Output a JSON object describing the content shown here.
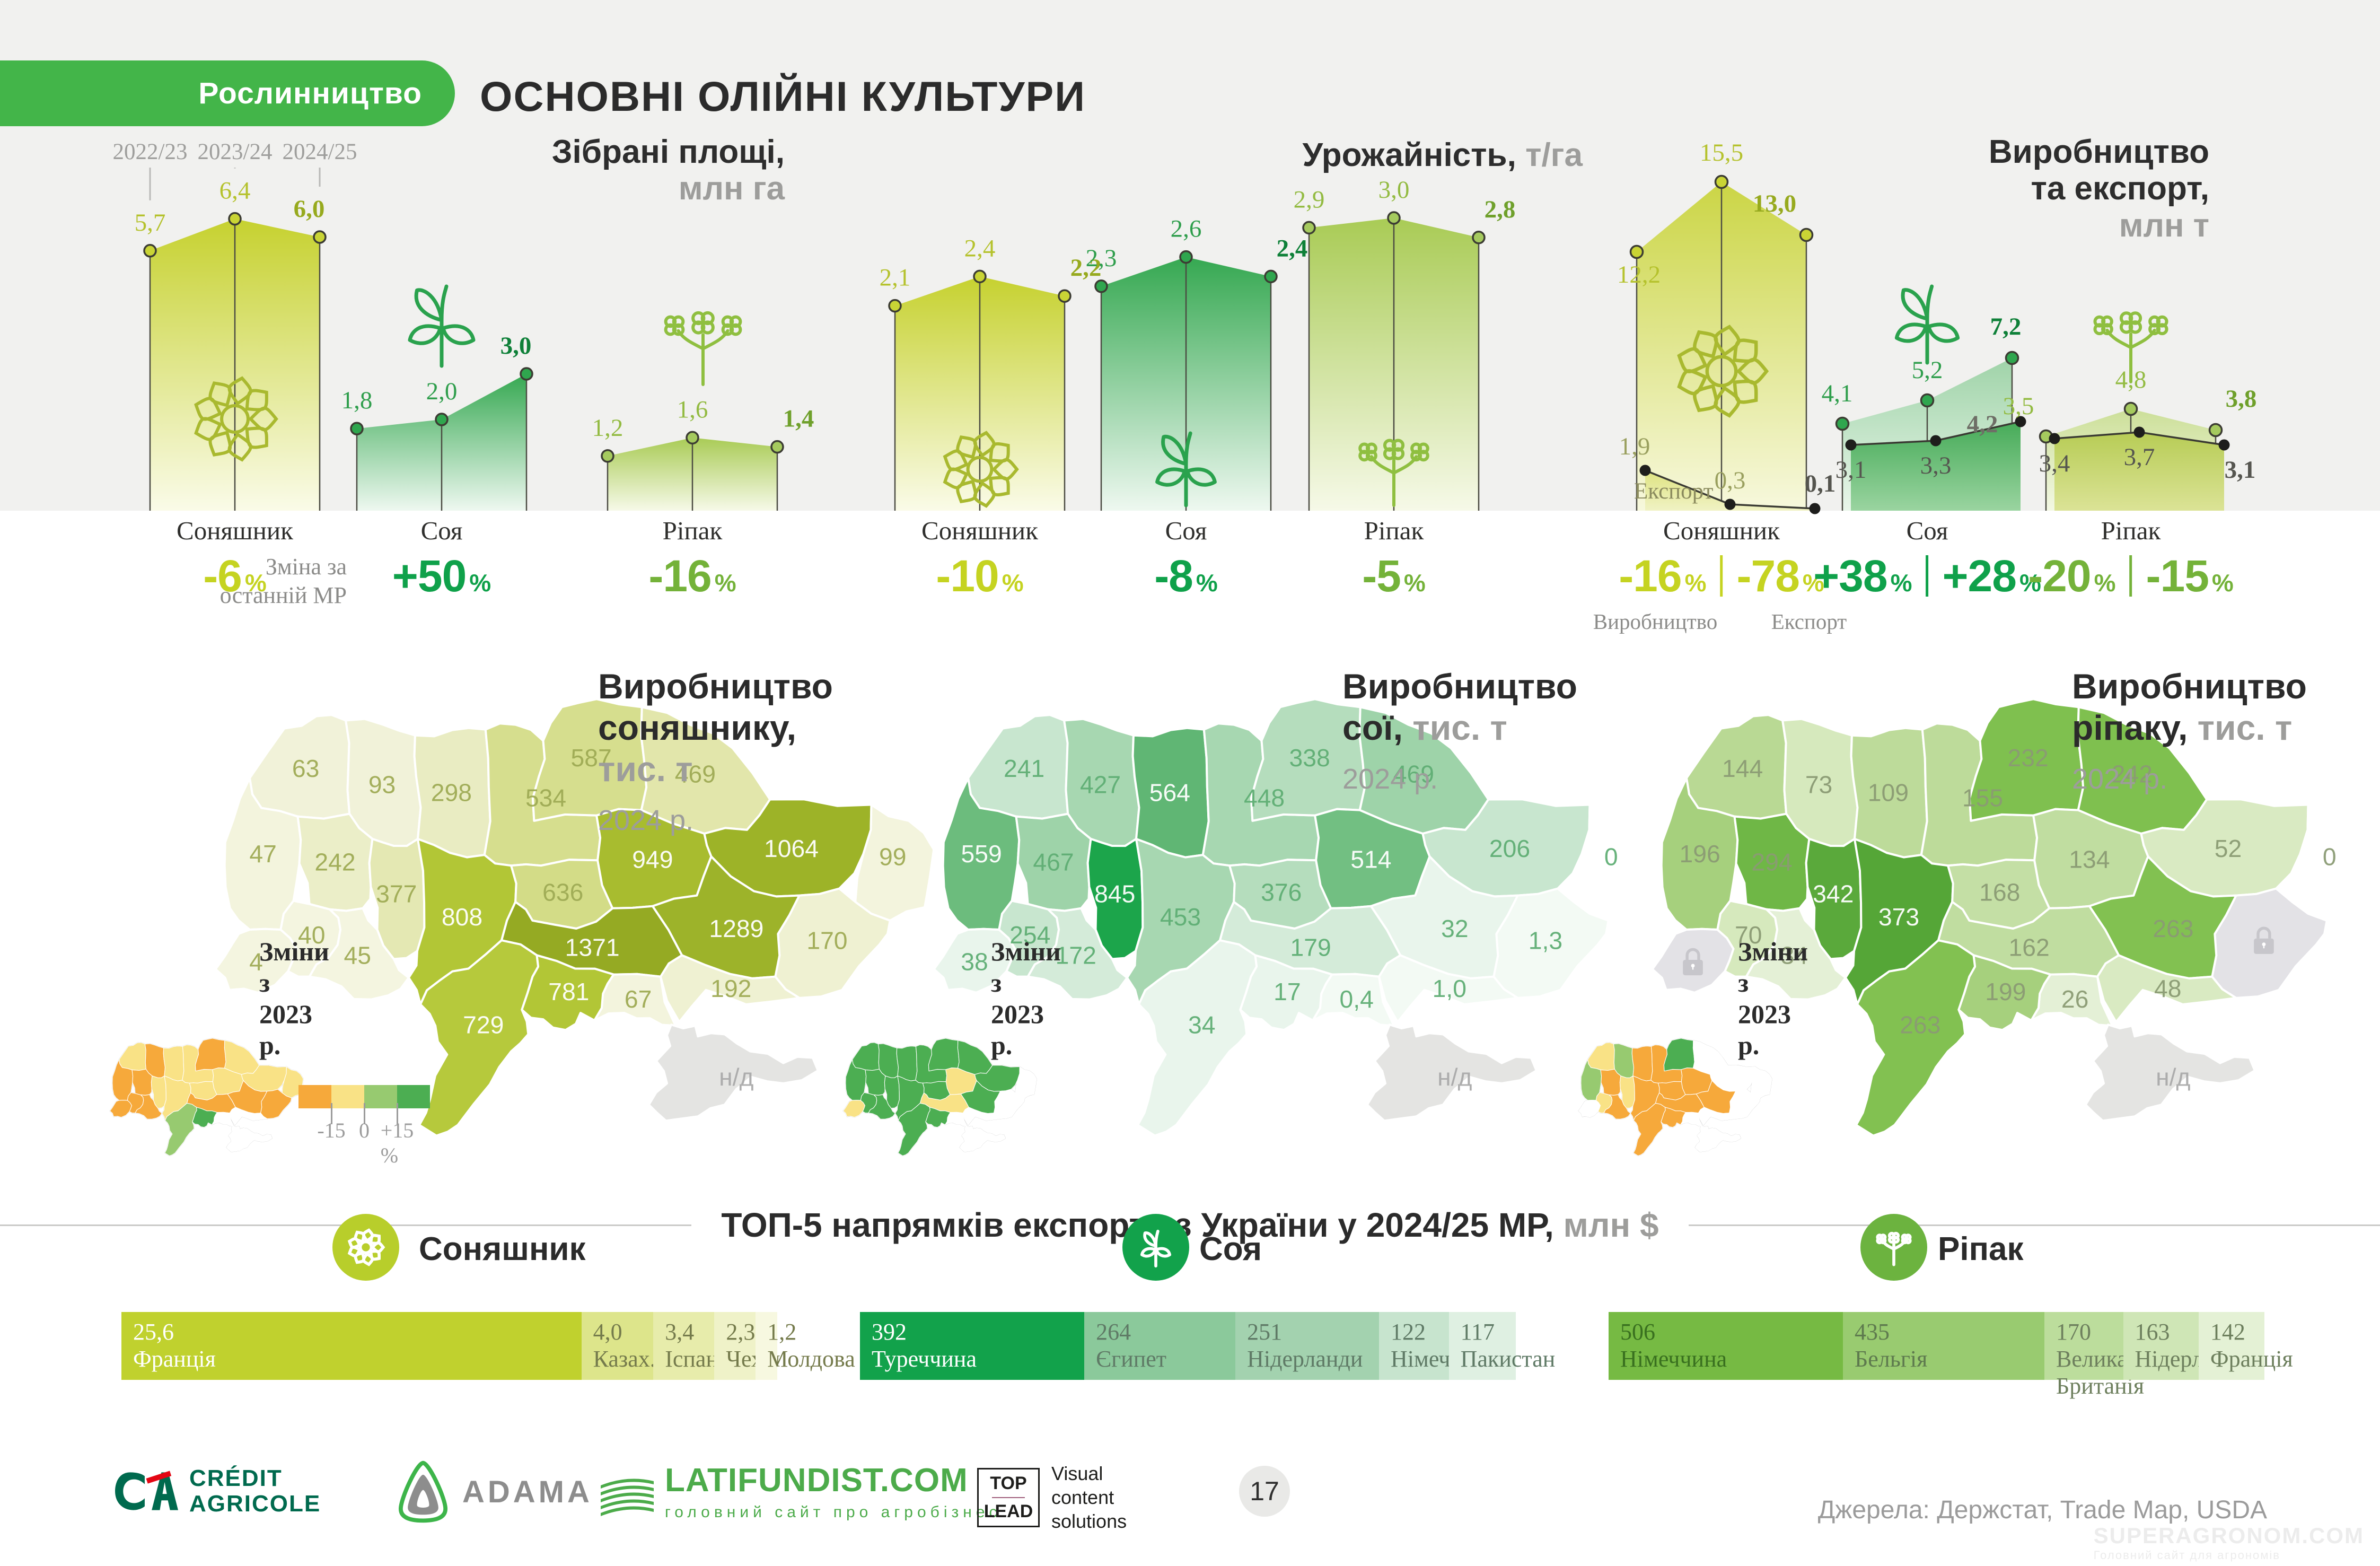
{
  "header": {
    "badge": "Рослинництво",
    "title": "ОСНОВНІ ОЛІЙНІ КУЛЬТУРИ"
  },
  "change_note": [
    "Зміна за",
    "останній МР"
  ],
  "chart_data": [
    {
      "type": "area",
      "title": "Зібрані площі,",
      "unit": "млн га",
      "categories": [
        "2022/23",
        "2023/24",
        "2024/25"
      ],
      "series": [
        {
          "name": "Соняшник",
          "values": [
            5.7,
            6.4,
            6.0
          ],
          "labels": [
            "5,7",
            "6,4",
            "6,0"
          ],
          "change": "-6"
        },
        {
          "name": "Соя",
          "values": [
            1.8,
            2.0,
            3.0
          ],
          "labels": [
            "1,8",
            "2,0",
            "3,0"
          ],
          "change": "+50"
        },
        {
          "name": "Ріпак",
          "values": [
            1.2,
            1.6,
            1.4
          ],
          "labels": [
            "1,2",
            "1,6",
            "1,4"
          ],
          "change": "-16"
        }
      ]
    },
    {
      "type": "area",
      "title": "Урожайність,",
      "unit": "т/га",
      "categories": [
        "2022/23",
        "2023/24",
        "2024/25"
      ],
      "series": [
        {
          "name": "Соняшник",
          "values": [
            2.1,
            2.4,
            2.2
          ],
          "labels": [
            "2,1",
            "2,4",
            "2,2"
          ],
          "change": "-10"
        },
        {
          "name": "Соя",
          "values": [
            2.3,
            2.6,
            2.4
          ],
          "labels": [
            "2,3",
            "2,6",
            "2,4"
          ],
          "change": "-8"
        },
        {
          "name": "Ріпак",
          "values": [
            2.9,
            3.0,
            2.8
          ],
          "labels": [
            "2,9",
            "3,0",
            "2,8"
          ],
          "change": "-5"
        }
      ]
    },
    {
      "type": "area",
      "title": [
        "Виробництво",
        "та експорт,"
      ],
      "unit": "млн т",
      "categories": [
        "2022/23",
        "2023/24",
        "2024/25"
      ],
      "export_label": "Експорт",
      "change_sублabels": [
        "Виробництво",
        "Експорт"
      ],
      "change_sublabels": [
        "Виробництво",
        "Експорт"
      ],
      "series": [
        {
          "name": "Соняшник",
          "production": [
            12.2,
            15.5,
            13.0
          ],
          "production_labels": [
            "12,2",
            "15,5",
            "13,0"
          ],
          "export": [
            1.9,
            0.3,
            0.1
          ],
          "export_labels": [
            "1,9",
            "0,3",
            "0,1"
          ],
          "change_production": "-16",
          "change_export": "-78"
        },
        {
          "name": "Соя",
          "production": [
            4.1,
            5.2,
            7.2
          ],
          "production_labels": [
            "4,1",
            "5,2",
            "7,2"
          ],
          "export": [
            3.1,
            3.3,
            4.2
          ],
          "export_labels": [
            "3,1",
            "3,3",
            "4,2"
          ],
          "change_production": "+38",
          "change_export": "+28"
        },
        {
          "name": "Ріпак",
          "production": [
            3.5,
            4.8,
            3.8
          ],
          "production_labels": [
            "3,5",
            "4,8",
            "3,8"
          ],
          "export": [
            3.4,
            3.7,
            3.1
          ],
          "export_labels": [
            "3,4",
            "3,7",
            "3,1"
          ],
          "change_production": "-20",
          "change_export": "-15"
        }
      ]
    }
  ],
  "maps": [
    {
      "title": [
        "Виробництво",
        "соняшнику, "
      ],
      "title_grey": "тис. т",
      "year": "2024 р.",
      "changes_label": [
        "Зміни",
        "з 2023 р."
      ],
      "regions": {
        "volyn": "63",
        "rivne": "93",
        "zhytomyr": "298",
        "kyiv": "534",
        "chernihiv": "587",
        "sumy": "469",
        "lviv": "47",
        "ternopil": "242",
        "khmelnytskyi": "377",
        "vinnytsia": "808",
        "cherkasy": "636",
        "poltava": "949",
        "kharkiv": "1064",
        "luhansk": "99",
        "donetsk": "170",
        "dnipro": "1289",
        "zaporizhzhia": "192",
        "kirovohrad": "1371",
        "mykolaiv": "781",
        "odesa": "729",
        "kherson": "67",
        "zakarpattia": "4",
        "ivanofrankivsk": "40",
        "chernivtsi": "45",
        "crimea": "н/д"
      },
      "fills": {
        "volyn": "#f1f2d9",
        "rivne": "#f1f2d9",
        "zhytomyr": "#e9ecc2",
        "kyiv": "#d6de8e",
        "chernihiv": "#d6de8e",
        "sumy": "#e2e6ab",
        "lviv": "#f3f4dd",
        "ternopil": "#ebeec8",
        "khmelnytskyi": "#e4e8b3",
        "vinnytsia": "#b2c636",
        "cherkasy": "#d3dc87",
        "poltava": "#a8bc2f",
        "kharkiv": "#9db328",
        "luhansk": "#f3f4dd",
        "donetsk": "#eff1d2",
        "dnipro": "#9db32a",
        "zaporizhzhia": "#eff1d2",
        "kirovohrad": "#95aa23",
        "mykolaiv": "#b2c636",
        "odesa": "#b6c93c",
        "kherson": "#f3f4dd",
        "zakarpattia": "#f4f5e0",
        "ivanofrankivsk": "#f4f5e0",
        "chernivtsi": "#f4f5e0",
        "crimea": "#e4e4e2"
      },
      "label_colors": {
        "default": "#9fab55",
        "white_on": [
          "vinnytsia",
          "kirovohrad",
          "dnipro",
          "poltava",
          "kharkiv",
          "mykolaiv",
          "odesa"
        ],
        "crimea": "#aaaaaa"
      },
      "inset": {
        "volyn": "yellow",
        "rivne": "orange",
        "zhytomyr": "yellow",
        "kyiv": "yellow",
        "chernihiv": "orange",
        "sumy": "yellow",
        "lviv": "orange",
        "ternopil": "orange",
        "khmelnytskyi": "yellow",
        "vinnytsia": "yellow",
        "cherkasy": "yellow",
        "poltava": "yellow",
        "kharkiv": "yellow",
        "luhansk": "yellow",
        "donetsk": "orange",
        "dnipro": "orange",
        "zaporizhzhia": "white",
        "kirovohrad": "orange",
        "mykolaiv": "green",
        "odesa": "lightgreen",
        "kherson": "white",
        "zakarpattia": "orange",
        "ivanofrankivsk": "orange",
        "chernivtsi": "orange",
        "crimea": "white"
      },
      "legend": {
        "labels": [
          "-15",
          "0",
          "+15 %"
        ],
        "colors": [
          "#f6a93b",
          "#f9e286",
          "#97ca70",
          "#4cae52"
        ]
      }
    },
    {
      "title": [
        "Виробництво",
        "сої, "
      ],
      "title_grey": "тис. т",
      "year": "2024 р.",
      "changes_label": [
        "Зміни",
        "з 2023 р."
      ],
      "regions": {
        "volyn": "241",
        "rivne": "427",
        "zhytomyr": "564",
        "kyiv": "448",
        "chernihiv": "338",
        "sumy": "469",
        "lviv": "559",
        "ternopil": "467",
        "khmelnytskyi": "845",
        "vinnytsia": "453",
        "cherkasy": "376",
        "poltava": "514",
        "kharkiv": "206",
        "luhansk": "0",
        "donetsk": "1,3",
        "dnipro": "32",
        "zaporizhzhia": "1,0",
        "kirovohrad": "179",
        "mykolaiv": "17",
        "odesa": "34",
        "kherson": "0,4",
        "zakarpattia": "38",
        "ivanofrankivsk": "254",
        "chernivtsi": "172",
        "crimea": "н/д"
      },
      "fills": {
        "volyn": "#c8e6cf",
        "rivne": "#a7d7b1",
        "zhytomyr": "#60b674",
        "kyiv": "#a7d7b1",
        "chernihiv": "#b5ddbd",
        "sumy": "#9ed3a9",
        "lviv": "#6cbc7d",
        "ternopil": "#9ed3a9",
        "khmelnytskyi": "#1ca54b",
        "vinnytsia": "#a7d7b1",
        "cherkasy": "#b5ddbd",
        "poltava": "#72bf82",
        "kharkiv": "#c8e6cf",
        "luhansk": "#ffffff",
        "donetsk": "#f3faf4",
        "dnipro": "#e9f5ec",
        "zaporizhzhia": "#f3faf4",
        "kirovohrad": "#d4ebd9",
        "mykolaiv": "#e9f5ec",
        "odesa": "#e9f5ec",
        "kherson": "#f3faf4",
        "zakarpattia": "#e9f5ec",
        "ivanofrankivsk": "#c8e6cf",
        "chernivtsi": "#d4ebd9",
        "crimea": "#e4e4e2"
      },
      "label_colors": {
        "default": "#5fae74",
        "white_on": [
          "khmelnytskyi",
          "zhytomyr",
          "lviv",
          "poltava"
        ],
        "crimea": "#aaaaaa"
      },
      "inset": {
        "volyn": "green",
        "rivne": "green",
        "zhytomyr": "green",
        "kyiv": "green",
        "chernihiv": "green",
        "sumy": "green",
        "lviv": "green",
        "ternopil": "green",
        "khmelnytskyi": "green",
        "vinnytsia": "green",
        "cherkasy": "green",
        "poltava": "yellow",
        "kharkiv": "green",
        "luhansk": "white",
        "donetsk": "white",
        "dnipro": "green",
        "zaporizhzhia": "white",
        "kirovohrad": "yellow",
        "mykolaiv": "green",
        "odesa": "green",
        "kherson": "white",
        "zakarpattia": "yellow",
        "ivanofrankivsk": "green",
        "chernivtsi": "green",
        "crimea": "white"
      }
    },
    {
      "title": [
        "Виробництво",
        "ріпаку, "
      ],
      "title_grey": "тис. т",
      "year": "2024 р.",
      "changes_label": [
        "Зміни",
        "з 2023 р."
      ],
      "locked": [
        "zakarpattia",
        "donetsk"
      ],
      "regions": {
        "volyn": "144",
        "rivne": "73",
        "zhytomyr": "109",
        "kyiv": "155",
        "chernihiv": "232",
        "sumy": "242",
        "lviv": "196",
        "ternopil": "294",
        "khmelnytskyi": "342",
        "vinnytsia": "373",
        "cherkasy": "168",
        "poltava": "134",
        "kharkiv": "52",
        "luhansk": "0",
        "donetsk": "",
        "dnipro": "263",
        "zaporizhzhia": "48",
        "kirovohrad": "162",
        "mykolaiv": "199",
        "odesa": "263",
        "kherson": "26",
        "zakarpattia": "",
        "ivanofrankivsk": "70",
        "chernivtsi": "34",
        "crimea": "н/д"
      },
      "fills": {
        "volyn": "#b9d994",
        "rivne": "#d6e9bd",
        "zhytomyr": "#bddb9a",
        "kyiv": "#bddb9a",
        "chernihiv": "#7fc04f",
        "sumy": "#7fc04f",
        "lviv": "#a6d07d",
        "ternopil": "#6fb746",
        "khmelnytskyi": "#5aa93b",
        "vinnytsia": "#55a637",
        "cherkasy": "#c4df a5",
        "poltava": "#c0dda0",
        "kharkiv": "#d9eac2",
        "luhansk": "#ffffff",
        "donetsk": "#e3e2e6",
        "dnipro": "#82c151",
        "zaporizhzhia": "#d9eac2",
        "kirovohrad": "#c0dda0",
        "mykolaiv": "#a6d07d",
        "odesa": "#82c151",
        "kherson": "#e4f0d6",
        "zakarpattia": "#e3e2e6",
        "ivanofrankivsk": "#d6e9bd",
        "chernivtsi": "#e4f0d6",
        "crimea": "#e4e4e2"
      },
      "label_colors": {
        "default": "#8b9b74",
        "white_on": [
          "khmelnytskyi",
          "vinnytsia"
        ],
        "crimea": "#aaaaaa"
      },
      "inset": {
        "volyn": "yellow",
        "rivne": "lightgreen",
        "zhytomyr": "orange",
        "kyiv": "orange",
        "chernihiv": "green",
        "sumy": "white",
        "lviv": "lightgreen",
        "ternopil": "orange",
        "khmelnytskyi": "yellow",
        "vinnytsia": "orange",
        "cherkasy": "orange",
        "poltava": "orange",
        "kharkiv": "white",
        "luhansk": "white",
        "donetsk": "white",
        "dnipro": "orange",
        "zaporizhzhia": "white",
        "kirovohrad": "orange",
        "mykolaiv": "orange",
        "odesa": "orange",
        "kherson": "white",
        "zakarpattia": "white",
        "ivanofrankivsk": "yellow",
        "chernivtsi": "orange",
        "crimea": "white"
      }
    }
  ],
  "top5": {
    "title": "ТОП-5 напрямків експорту з України у 2024/25 МР,",
    "title_grey": "млн $",
    "groups": [
      {
        "name": "Соняшник",
        "icon": "sunflower",
        "icon_color": "#b8ce2b",
        "items": [
          {
            "value": 25.6,
            "label": "25,6",
            "country": "Франція"
          },
          {
            "value": 4.0,
            "label": "4,0",
            "country": "Казах."
          },
          {
            "value": 3.4,
            "label": "3,4",
            "country": "Іспанія"
          },
          {
            "value": 2.3,
            "label": "2,3",
            "country": "Чехія"
          },
          {
            "value": 1.2,
            "label": "1,2",
            "country": "Молдова"
          }
        ],
        "seg_colors": [
          "#c0d12e",
          "#dde58b",
          "#e7ecab",
          "#eff2c8",
          "#f7f8e0"
        ],
        "text_colors": [
          "#ffffff",
          "#757b4c",
          "#757b4c",
          "#757b4c",
          "#757b4c"
        ]
      },
      {
        "name": "Соя",
        "icon": "soy",
        "icon_color": "#12a24b",
        "items": [
          {
            "value": 392,
            "label": "392",
            "country": "Туреччина"
          },
          {
            "value": 264,
            "label": "264",
            "country": "Єгипет"
          },
          {
            "value": 251,
            "label": "251",
            "country": "Нідерланди"
          },
          {
            "value": 122,
            "label": "122",
            "country": "Німеч."
          },
          {
            "value": 117,
            "label": "117",
            "country": "Пакистан"
          }
        ],
        "seg_colors": [
          "#12a24b",
          "#8bc99b",
          "#a3d2af",
          "#c7e4ce",
          "#dff0e2"
        ],
        "text_colors": [
          "#ffffff",
          "#5f7a66",
          "#5f7a66",
          "#5f7a66",
          "#5f7a66"
        ]
      },
      {
        "name": "Ріпак",
        "icon": "rapeseed",
        "icon_color": "#6cb33f",
        "items": [
          {
            "value": 506,
            "label": "506",
            "country": "Німеччина"
          },
          {
            "value": 435,
            "label": "435",
            "country": "Бельгія"
          },
          {
            "value": 170,
            "label": "170",
            "country": "Велика Британія"
          },
          {
            "value": 163,
            "label": "163",
            "country": "Нідерл."
          },
          {
            "value": 142,
            "label": "142",
            "country": "Франція"
          }
        ],
        "seg_colors": [
          "#76ba43",
          "#99cb70",
          "#bcdd9c",
          "#cfe6b6",
          "#e4f1d5"
        ],
        "text_colors": [
          "#39701f",
          "#5e7a4e",
          "#6d7f5d",
          "#6d7f5d",
          "#6d7f5d"
        ]
      }
    ]
  },
  "footer": {
    "credit_agricole": [
      "CRÉDIT",
      "AGRICOLE"
    ],
    "adama": "ADAMA",
    "latifundist": "LATIFUNDIST.COM",
    "latifundist_tagline": "головний сайт про агробізнес",
    "toplead": [
      "TOP",
      "LEAD"
    ],
    "toplead_text": [
      "Visual",
      "content",
      "solutions"
    ],
    "page": "17",
    "sources": "Джерела: Держстат, Trade Map, USDA",
    "watermark": "SUPERAGRONOM.COM",
    "watermark_tagline": "Головний сайт для агрономів"
  },
  "style": {
    "series": [
      {
        "fill_top": "#c6d12f",
        "fill_bottom": "#fafbe8",
        "dot": "#c9d435",
        "label": "#b5c22d",
        "label_bold": "#97aa1e",
        "pct": "#c5d321",
        "icon": "#a9b92f"
      },
      {
        "fill_top": "#35a851",
        "fill_bottom": "#eef8f0",
        "dot": "#2fa64e",
        "label": "#2f9e4c",
        "label_bold": "#0e8038",
        "pct": "#0fa14a",
        "icon": "#2aa24d"
      },
      {
        "fill_top": "#a9cb55",
        "fill_bottom": "#f6f9e8",
        "dot": "#a5ca5e",
        "label": "#93bb42",
        "label_bold": "#6fa02b",
        "pct": "#74b239",
        "icon": "#8fbf40"
      }
    ],
    "g3": {
      "prod_fill_top": [
        "#cbd545",
        "#9fd3a8",
        "#ccdf98"
      ],
      "prod_fill_bottom": [
        "#f7f8dd",
        "#e9f6ea",
        "#f3f8e4"
      ],
      "export_fill_top": [
        "#dee380",
        "#46ab58",
        "#b7cc55"
      ],
      "export_fill_bottom": [
        "#f0f2c4",
        "#9ad4a0",
        "#dbe396"
      ],
      "export_line": "#3a3a33",
      "export_dot": "#1e1e1c",
      "export_grey_label": "#9aa05f",
      "grey_label": "#55554f"
    }
  }
}
